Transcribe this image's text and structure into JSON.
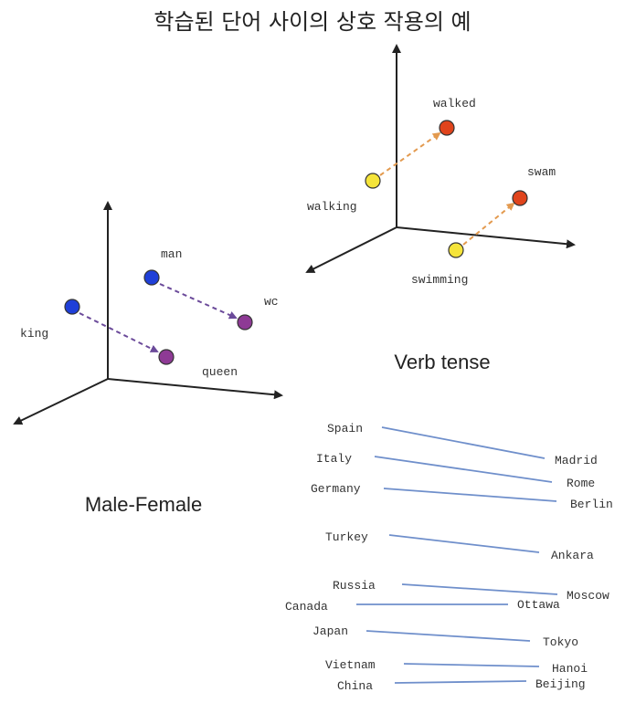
{
  "title": "학습된 단어 사이의 상호 작용의 예",
  "colors": {
    "blue": "#1f3fd8",
    "purple": "#8e3a95",
    "red": "#e0441c",
    "yellow": "#f5e43a",
    "purple_arrow": "#6b4a9a",
    "orange_arrow": "#e39a4f",
    "country_line": "#6f8fcb"
  },
  "male_female": {
    "caption": "Male-Female",
    "labels": {
      "man": "man",
      "woman": "wc",
      "king": "king",
      "queen": "queen"
    }
  },
  "verb_tense": {
    "caption": "Verb tense",
    "labels": {
      "walking": "walking",
      "walked": "walked",
      "swimming": "swimming",
      "swam": "swam"
    }
  },
  "country_capital": {
    "pairs": [
      {
        "country": "Spain",
        "capital": "Madrid"
      },
      {
        "country": "Italy",
        "capital": "Rome"
      },
      {
        "country": "Germany",
        "capital": "Berlin"
      },
      {
        "country": "Turkey",
        "capital": "Ankara"
      },
      {
        "country": "Russia",
        "capital": "Moscow"
      },
      {
        "country": "Canada",
        "capital": "Ottawa"
      },
      {
        "country": "Japan",
        "capital": "Tokyo"
      },
      {
        "country": "Vietnam",
        "capital": "Hanoi"
      },
      {
        "country": "China",
        "capital": "Beijing"
      }
    ]
  }
}
